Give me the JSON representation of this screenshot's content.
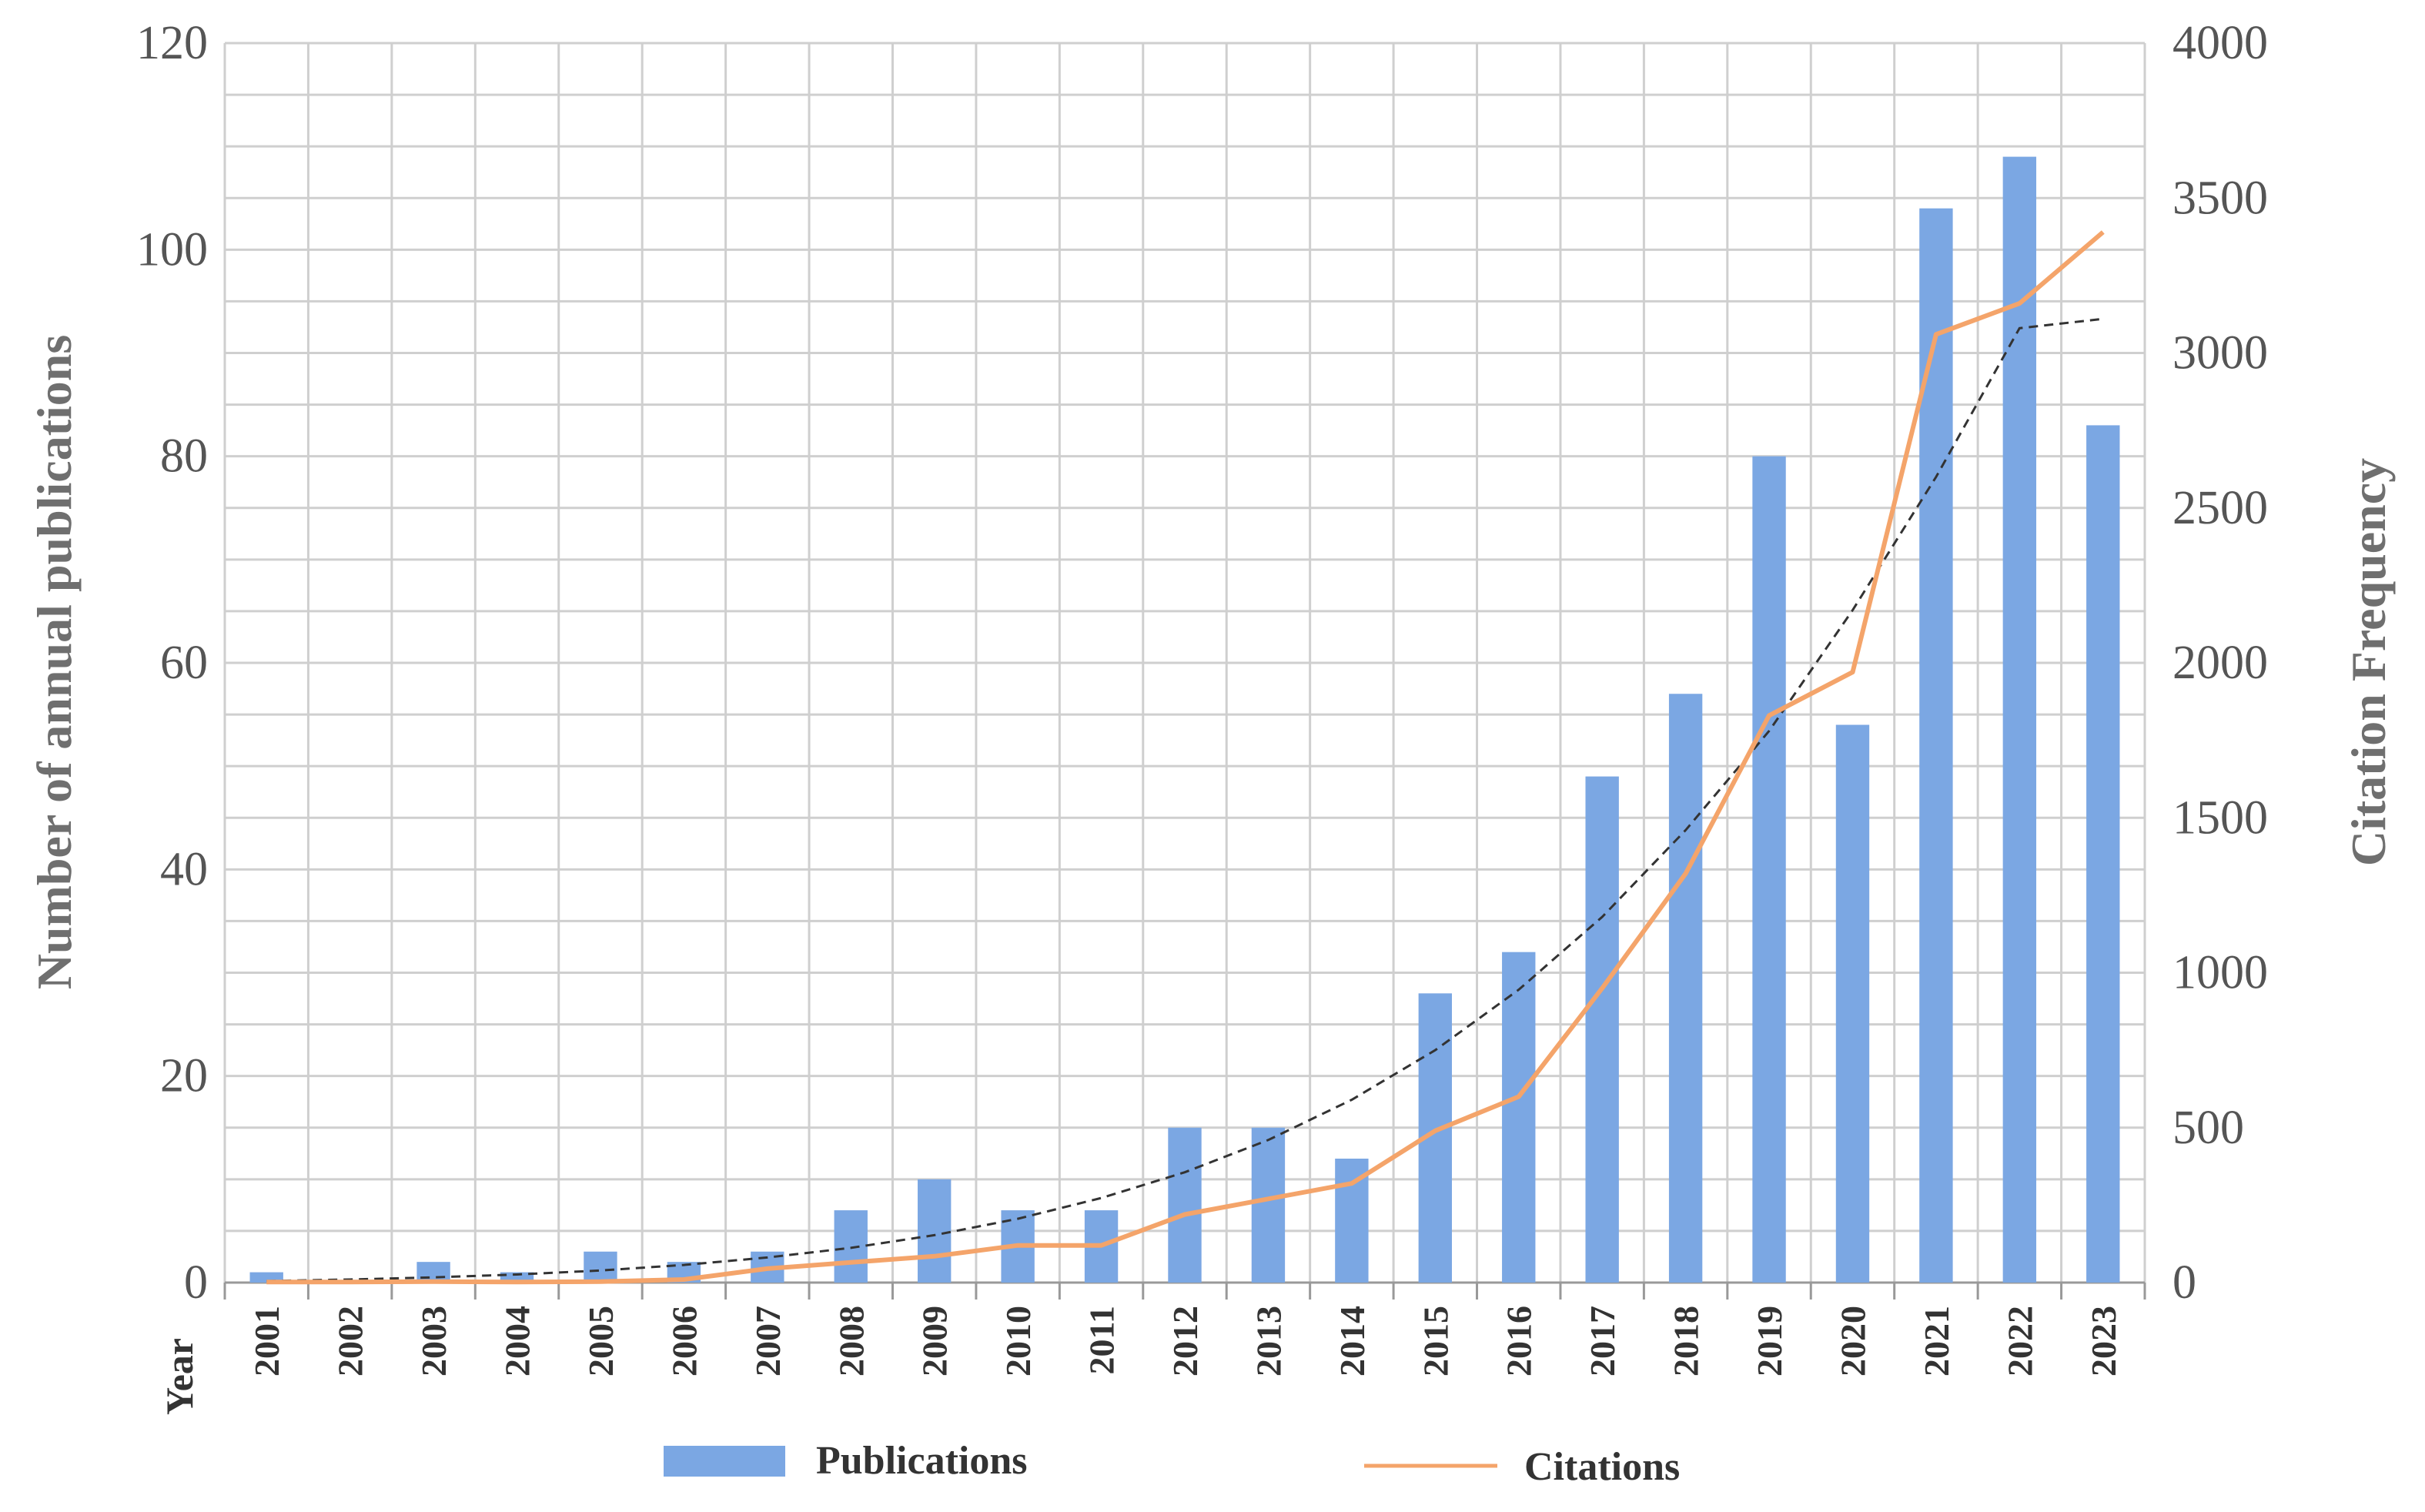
{
  "chart_data": {
    "type": "bar+line",
    "x_axis_label": "Year",
    "categories": [
      "2001",
      "2002",
      "2003",
      "2004",
      "2005",
      "2006",
      "2007",
      "2008",
      "2009",
      "2010",
      "2011",
      "2012",
      "2013",
      "2014",
      "2015",
      "2016",
      "2017",
      "2018",
      "2019",
      "2020",
      "2021",
      "2022",
      "2023"
    ],
    "series": [
      {
        "name": "Publications",
        "type": "bar",
        "axis": "left",
        "color": "#7ba7e3",
        "values": [
          1,
          0,
          2,
          1,
          3,
          2,
          3,
          7,
          10,
          7,
          7,
          15,
          15,
          12,
          28,
          32,
          49,
          57,
          80,
          54,
          104,
          109,
          83
        ]
      },
      {
        "name": "Citations",
        "type": "line",
        "axis": "right",
        "color": "#f4a46a",
        "values": [
          2,
          2,
          3,
          2,
          3,
          10,
          45,
          65,
          85,
          120,
          120,
          220,
          270,
          320,
          490,
          600,
          950,
          1320,
          1830,
          1970,
          3060,
          3160,
          3390
        ]
      }
    ],
    "trendline": {
      "type": "exponential",
      "axis": "right",
      "style": "dashed",
      "color": "#333333",
      "values": [
        5,
        10,
        17,
        26,
        39,
        57,
        81,
        112,
        153,
        206,
        273,
        356,
        460,
        590,
        750,
        945,
        1180,
        1460,
        1780,
        2170,
        2600,
        3080,
        3110
      ]
    },
    "left_axis": {
      "title": "Number of annual publications",
      "min": 0,
      "max": 120,
      "ticks": [
        "0",
        "20",
        "40",
        "60",
        "80",
        "100",
        "120"
      ]
    },
    "right_axis": {
      "title": "Citation Frequency",
      "min": 0,
      "max": 4000,
      "ticks": [
        "0",
        "500",
        "1000",
        "1500",
        "2000",
        "2500",
        "3000",
        "3500",
        "4000"
      ]
    },
    "legend": {
      "position": "bottom",
      "items": [
        "Publications",
        "Citations"
      ]
    }
  }
}
